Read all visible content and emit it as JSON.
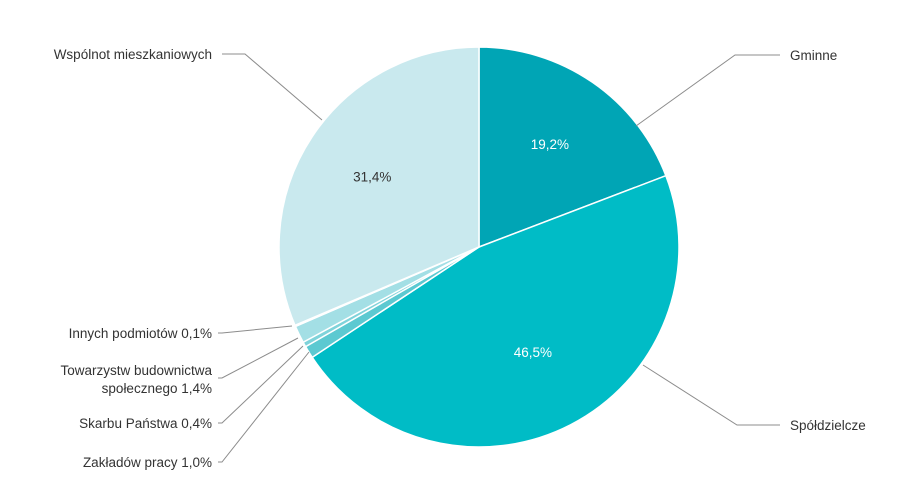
{
  "chart_data": {
    "type": "pie",
    "title": "",
    "slices": [
      {
        "label": "Gminne",
        "value": 19.2,
        "value_label": "19,2%",
        "color": "#00a5b5",
        "label_color": "#ffffff",
        "show_pct_inside": true,
        "legend_text": "Gminne"
      },
      {
        "label": "Spółdzielcze",
        "value": 46.5,
        "value_label": "46,5%",
        "color": "#00bcc6",
        "label_color": "#ffffff",
        "show_pct_inside": true,
        "legend_text": "Spółdzielcze"
      },
      {
        "label": "Zakładów pracy",
        "value": 1.0,
        "value_label": "1,0%",
        "color": "#5cc9d1",
        "show_pct_inside": false,
        "legend_text": "Zakładów pracy 1,0%"
      },
      {
        "label": "Skarbu Państwa",
        "value": 0.4,
        "value_label": "0,4%",
        "color": "#7fd3da",
        "show_pct_inside": false,
        "legend_text": "Skarbu Państwa 0,4%"
      },
      {
        "label": "Towarzystw budownictwa społecznego",
        "value": 1.4,
        "value_label": "1,4%",
        "color": "#a3dfe5",
        "show_pct_inside": false,
        "legend_lines": [
          "Towarzystw budownictwa",
          "społecznego 1,4%"
        ]
      },
      {
        "label": "Innych podmiotów",
        "value": 0.1,
        "value_label": "0,1%",
        "color": "#b9e6ea",
        "show_pct_inside": false,
        "legend_text": "Innych podmiotów 0,1%"
      },
      {
        "label": "Wspólnot mieszkaniowych",
        "value": 31.4,
        "value_label": "31,4%",
        "color": "#c9e9ee",
        "label_color": "#333333",
        "show_pct_inside": true,
        "legend_text": "Wspólnot mieszkaniowych"
      }
    ]
  }
}
